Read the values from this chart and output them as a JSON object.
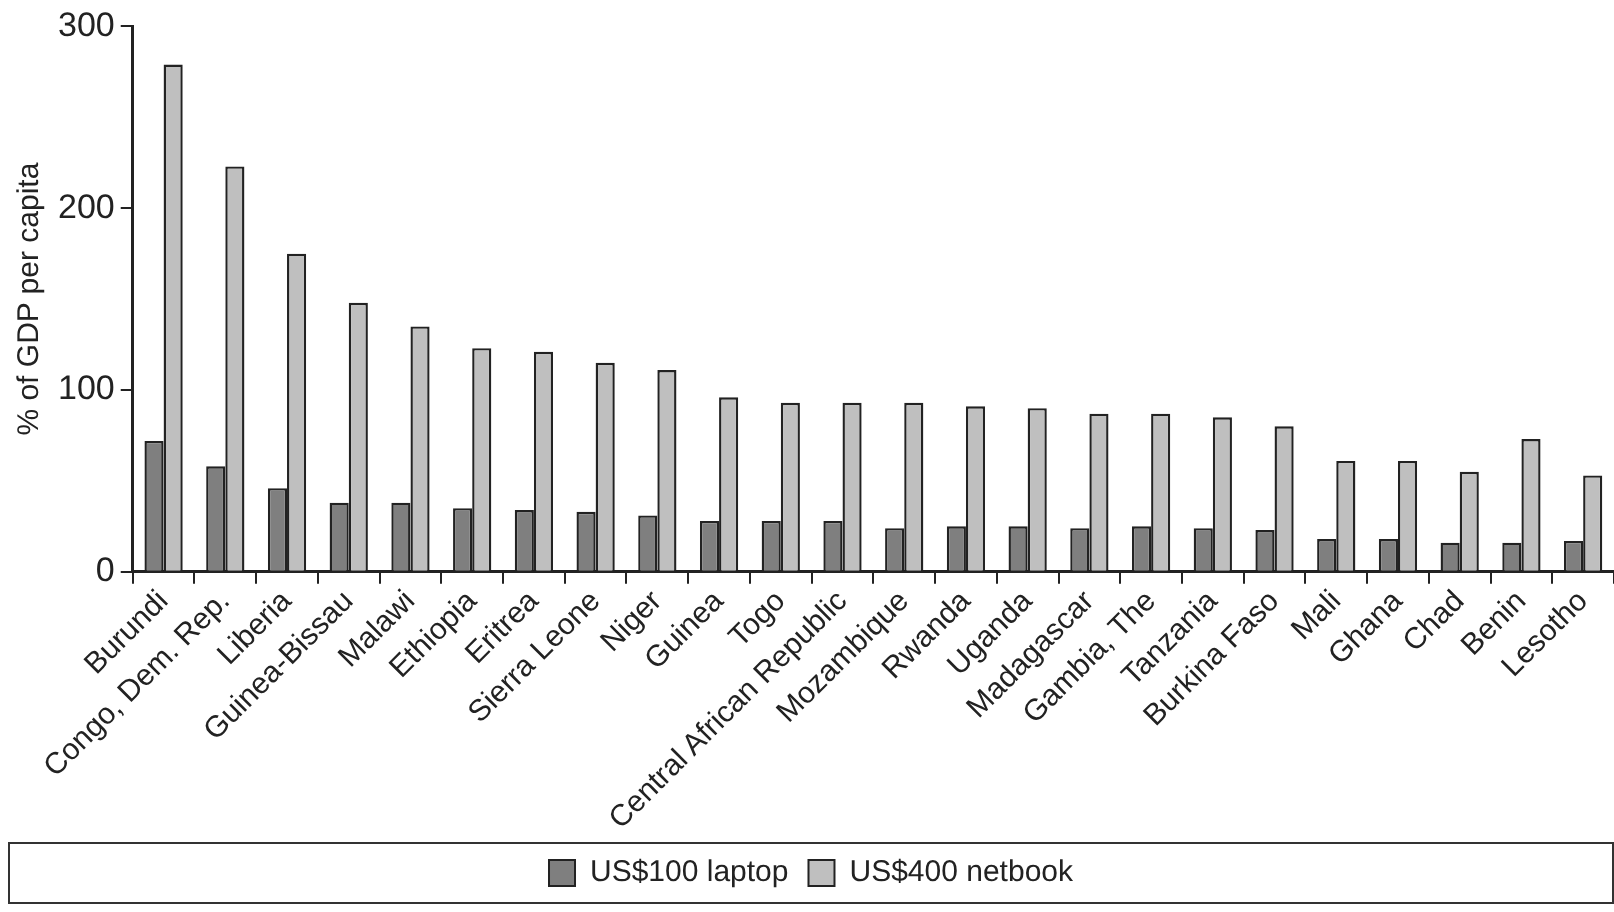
{
  "chart_data": {
    "type": "bar",
    "ylabel": "% of GDP per capita",
    "categories": [
      "Burundi",
      "Congo, Dem. Rep.",
      "Liberia",
      "Guinea-Bissau",
      "Malawi",
      "Ethiopia",
      "Eritrea",
      "Sierra Leone",
      "Niger",
      "Guinea",
      "Togo",
      "Central African Republic",
      "Mozambique",
      "Rwanda",
      "Uganda",
      "Madagascar",
      "Gambia, The",
      "Tanzania",
      "Burkina Faso",
      "Mali",
      "Ghana",
      "Chad",
      "Benin",
      "Lesotho"
    ],
    "series": [
      {
        "name": "US$100 laptop",
        "color": "#7f7f7f",
        "values": [
          72,
          58,
          46,
          38,
          38,
          35,
          34,
          33,
          31,
          28,
          28,
          28,
          24,
          25,
          25,
          24,
          25,
          24,
          23,
          18,
          18,
          16,
          16,
          17
        ]
      },
      {
        "name": "US$400 netbook",
        "color": "#bfbfbf",
        "values": [
          279,
          223,
          175,
          148,
          135,
          123,
          121,
          115,
          111,
          96,
          93,
          93,
          93,
          91,
          90,
          87,
          87,
          85,
          80,
          61,
          61,
          55,
          73,
          53
        ]
      }
    ],
    "ylim": [
      0,
      300
    ],
    "yticks": [
      0,
      100,
      200,
      300
    ],
    "grid": false,
    "legend": "bottom"
  }
}
